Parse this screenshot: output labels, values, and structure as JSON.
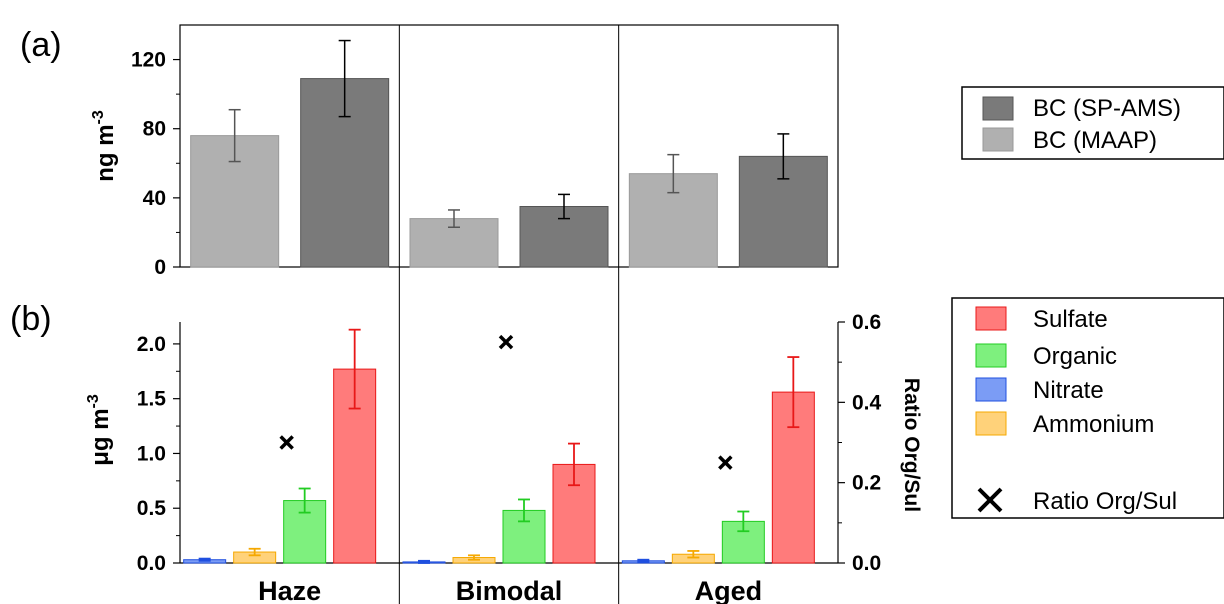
{
  "figure": {
    "panel_a_letter": "(a)",
    "panel_b_letter": "(b)"
  },
  "chart_data": [
    {
      "type": "bar",
      "panel": "(a)",
      "categories": [
        "Haze",
        "Bimodal",
        "Aged"
      ],
      "ylabel": "ng m",
      "ylabel_sup": "-3",
      "ylim": [
        0,
        140
      ],
      "yticks": [
        0,
        40,
        80,
        120
      ],
      "ytick_labels": [
        "0",
        "40",
        "80",
        "120"
      ],
      "grid": false,
      "legend_position": "right",
      "series": [
        {
          "name": "BC (MAAP)",
          "color": "#b0b0b0",
          "values": [
            76,
            28,
            54
          ],
          "err": [
            15,
            5,
            11
          ]
        },
        {
          "name": "BC (SP-AMS)",
          "color": "#7a7a7a",
          "values": [
            109,
            35,
            64
          ],
          "err": [
            22,
            7,
            13
          ]
        }
      ],
      "legend": [
        "BC (SP-AMS)",
        "BC (MAAP)"
      ]
    },
    {
      "type": "bar",
      "panel": "(b)",
      "categories": [
        "Haze",
        "Bimodal",
        "Aged"
      ],
      "ylabel": "μg m",
      "ylabel_sup": "-3",
      "ylim": [
        0,
        2.2
      ],
      "yticks": [
        0,
        0.5,
        1.0,
        1.5,
        2.0
      ],
      "ytick_labels": [
        "0.0",
        "0.5",
        "1.0",
        "1.5",
        "2.0"
      ],
      "y2label": "Ratio Org/Sul",
      "y2lim": [
        0,
        0.6
      ],
      "y2ticks": [
        0,
        0.2,
        0.4,
        0.6
      ],
      "y2tick_labels": [
        "0.0",
        "0.2",
        "0.4",
        "0.6"
      ],
      "grid": false,
      "legend_position": "right",
      "series": [
        {
          "name": "Nitrate",
          "color": "#7b9cf5",
          "edge": "#1f4fe0",
          "values": [
            0.03,
            0.01,
            0.02
          ],
          "err": [
            0.01,
            0.01,
            0.01
          ]
        },
        {
          "name": "Ammonium",
          "color": "#ffd27a",
          "edge": "#f5a800",
          "values": [
            0.1,
            0.05,
            0.08
          ],
          "err": [
            0.03,
            0.02,
            0.03
          ]
        },
        {
          "name": "Organic",
          "color": "#7ef07e",
          "edge": "#22cc22",
          "values": [
            0.57,
            0.48,
            0.38
          ],
          "err": [
            0.11,
            0.1,
            0.09
          ]
        },
        {
          "name": "Sulfate",
          "color": "#ff7b7b",
          "edge": "#e81818",
          "values": [
            1.77,
            0.9,
            1.56
          ],
          "err": [
            0.36,
            0.19,
            0.32
          ]
        }
      ],
      "ratio_series": {
        "name": "Ratio Org/Sul",
        "values": [
          0.3,
          0.55,
          0.25
        ]
      },
      "legend": [
        "Sulfate",
        "Organic",
        "Nitrate",
        "Ammonium",
        "Ratio Org/Sul"
      ]
    }
  ]
}
